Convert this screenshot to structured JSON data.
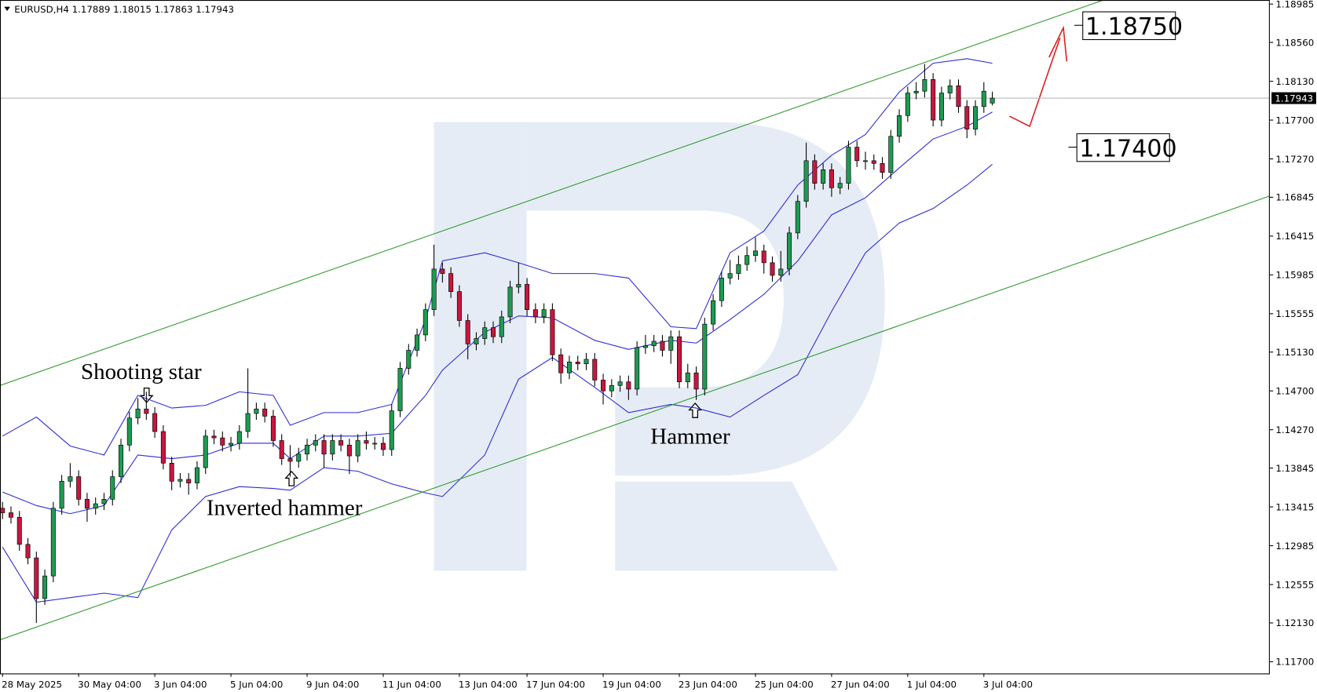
{
  "header": "EURUSD,H4 1.17889 1.18015 1.17863 1.17943",
  "chart_data": {
    "type": "candlestick",
    "categories": [
      "28 May 2025",
      null,
      null,
      null,
      null,
      null,
      null,
      null,
      null,
      "30 May 04:00",
      null,
      null,
      null,
      null,
      null,
      null,
      null,
      null,
      "3 Jun 04:00",
      null,
      null,
      null,
      null,
      null,
      null,
      null,
      null,
      "5 Jun 04:00",
      null,
      null,
      null,
      null,
      null,
      null,
      null,
      null,
      "9 Jun 04:00",
      null,
      null,
      null,
      null,
      null,
      null,
      null,
      null,
      "11 Jun 04:00",
      null,
      null,
      null,
      null,
      null,
      null,
      null,
      null,
      "13 Jun 04:00",
      null,
      null,
      null,
      null,
      null,
      null,
      null,
      "17 Jun 04:00",
      null,
      null,
      null,
      null,
      null,
      null,
      null,
      null,
      "19 Jun 04:00",
      null,
      null,
      null,
      null,
      null,
      null,
      null,
      null,
      "23 Jun 04:00",
      null,
      null,
      null,
      null,
      null,
      null,
      null,
      null,
      "25 Jun 04:00",
      null,
      null,
      null,
      null,
      null,
      null,
      null,
      null,
      "27 Jun 04:00",
      null,
      null,
      null,
      null,
      null,
      null,
      null,
      null,
      "1 Jul 04:00",
      null,
      null,
      null,
      null,
      null,
      null,
      null,
      null,
      "3 Jul 04:00",
      null
    ],
    "open": [
      1.134,
      1.1335,
      1.133,
      1.13,
      1.1285,
      1.124,
      1.1265,
      1.134,
      1.137,
      1.1375,
      1.135,
      1.134,
      1.1345,
      1.135,
      1.1375,
      1.141,
      1.144,
      1.145,
      1.1445,
      1.1425,
      1.139,
      1.137,
      1.1372,
      1.1368,
      1.1385,
      1.142,
      1.1418,
      1.141,
      1.1412,
      1.1425,
      1.1445,
      1.145,
      1.1442,
      1.1415,
      1.1395,
      1.1392,
      1.14,
      1.141,
      1.1415,
      1.14,
      1.1415,
      1.141,
      1.1398,
      1.1415,
      1.1412,
      1.1412,
      1.1405,
      1.1448,
      1.1495,
      1.1515,
      1.1532,
      1.156,
      1.1605,
      1.16,
      1.158,
      1.1548,
      1.1522,
      1.1528,
      1.154,
      1.153,
      1.1552,
      1.1585,
      1.1588,
      1.156,
      1.1552,
      1.156,
      1.151,
      1.149,
      1.1502,
      1.15,
      1.1505,
      1.1482,
      1.147,
      1.1476,
      1.148,
      1.1472,
      1.1518,
      1.152,
      1.1525,
      1.1515,
      1.153,
      1.148,
      1.149,
      1.1472,
      1.1544,
      1.157,
      1.1595,
      1.16,
      1.161,
      1.162,
      1.1625,
      1.1612,
      1.1598,
      1.1605,
      1.1645,
      1.168,
      1.1725,
      1.17,
      1.1715,
      1.1695,
      1.17,
      1.174,
      1.1725,
      1.1725,
      1.1722,
      1.1712,
      1.1752,
      1.1775,
      1.18,
      1.1802,
      1.1815,
      1.177,
      1.18,
      1.1808,
      1.1785,
      1.176,
      1.1785,
      1.17889
    ],
    "high": [
      1.1347,
      1.1342,
      1.1337,
      1.1307,
      1.1292,
      1.1272,
      1.1347,
      1.1377,
      1.139,
      1.1382,
      1.1357,
      1.1352,
      1.1357,
      1.1382,
      1.1417,
      1.1447,
      1.1462,
      1.1469,
      1.1452,
      1.1432,
      1.1397,
      1.1379,
      1.1379,
      1.1392,
      1.1427,
      1.1427,
      1.1425,
      1.1419,
      1.1432,
      1.1495,
      1.1457,
      1.1457,
      1.1449,
      1.1422,
      1.141,
      1.1407,
      1.1417,
      1.1422,
      1.1422,
      1.1422,
      1.1422,
      1.1417,
      1.1422,
      1.1425,
      1.1419,
      1.1419,
      1.1455,
      1.1502,
      1.1522,
      1.1539,
      1.1567,
      1.1632,
      1.1612,
      1.1607,
      1.1587,
      1.1555,
      1.1535,
      1.1547,
      1.1547,
      1.1559,
      1.1592,
      1.1612,
      1.1595,
      1.1567,
      1.1567,
      1.1567,
      1.1517,
      1.1509,
      1.1509,
      1.1512,
      1.1512,
      1.1489,
      1.1483,
      1.1487,
      1.1487,
      1.1525,
      1.1532,
      1.1532,
      1.1532,
      1.1537,
      1.1537,
      1.15,
      1.1497,
      1.1551,
      1.1577,
      1.1602,
      1.1615,
      1.162,
      1.163,
      1.164,
      1.1632,
      1.1619,
      1.1625,
      1.1652,
      1.1687,
      1.1745,
      1.1732,
      1.1722,
      1.1722,
      1.1707,
      1.1747,
      1.1747,
      1.1735,
      1.1732,
      1.1729,
      1.1759,
      1.1782,
      1.1807,
      1.1812,
      1.1832,
      1.1822,
      1.1807,
      1.1815,
      1.1815,
      1.1792,
      1.1792,
      1.1812,
      1.18015
    ],
    "low": [
      1.1328,
      1.1323,
      1.1293,
      1.1278,
      1.1213,
      1.1233,
      1.1258,
      1.1333,
      1.1363,
      1.1343,
      1.1325,
      1.1333,
      1.1338,
      1.1343,
      1.1368,
      1.1403,
      1.1433,
      1.1438,
      1.1418,
      1.1383,
      1.136,
      1.1363,
      1.1355,
      1.1361,
      1.1378,
      1.1411,
      1.1403,
      1.1403,
      1.1405,
      1.1418,
      1.1438,
      1.1435,
      1.1408,
      1.1388,
      1.1375,
      1.1385,
      1.1393,
      1.1403,
      1.1385,
      1.1393,
      1.1403,
      1.1378,
      1.1391,
      1.1405,
      1.1405,
      1.1398,
      1.1398,
      1.1441,
      1.1488,
      1.1508,
      1.1525,
      1.1553,
      1.159,
      1.1573,
      1.1541,
      1.1505,
      1.1515,
      1.1521,
      1.1523,
      1.1523,
      1.1545,
      1.1578,
      1.1553,
      1.1545,
      1.1545,
      1.1503,
      1.1478,
      1.1483,
      1.1493,
      1.1493,
      1.1475,
      1.1455,
      1.1463,
      1.1469,
      1.146,
      1.1465,
      1.1511,
      1.1513,
      1.1508,
      1.15,
      1.1473,
      1.1473,
      1.146,
      1.1465,
      1.1537,
      1.1563,
      1.1588,
      1.1593,
      1.1603,
      1.1613,
      1.16,
      1.1591,
      1.1591,
      1.1598,
      1.1638,
      1.1673,
      1.1693,
      1.1693,
      1.1685,
      1.1688,
      1.1693,
      1.1718,
      1.1715,
      1.1715,
      1.1705,
      1.1705,
      1.1745,
      1.1768,
      1.1793,
      1.1795,
      1.1763,
      1.1763,
      1.1793,
      1.1778,
      1.175,
      1.1753,
      1.1778,
      1.17863
    ],
    "close": [
      1.1335,
      1.133,
      1.13,
      1.1285,
      1.124,
      1.1265,
      1.134,
      1.137,
      1.1375,
      1.135,
      1.134,
      1.1345,
      1.135,
      1.1375,
      1.141,
      1.144,
      1.145,
      1.1445,
      1.1425,
      1.139,
      1.137,
      1.1372,
      1.1368,
      1.1385,
      1.142,
      1.1418,
      1.141,
      1.1412,
      1.1425,
      1.1445,
      1.145,
      1.1442,
      1.1415,
      1.1395,
      1.1392,
      1.14,
      1.141,
      1.1415,
      1.14,
      1.1415,
      1.141,
      1.1398,
      1.1415,
      1.1412,
      1.1412,
      1.1405,
      1.1448,
      1.1495,
      1.1515,
      1.1532,
      1.156,
      1.1605,
      1.16,
      1.158,
      1.1548,
      1.1522,
      1.1528,
      1.154,
      1.153,
      1.1552,
      1.1585,
      1.1588,
      1.156,
      1.1552,
      1.156,
      1.151,
      1.149,
      1.1502,
      1.15,
      1.1505,
      1.1482,
      1.147,
      1.1476,
      1.148,
      1.1472,
      1.1518,
      1.152,
      1.1525,
      1.1515,
      1.153,
      1.148,
      1.149,
      1.1472,
      1.1544,
      1.157,
      1.1595,
      1.16,
      1.161,
      1.162,
      1.1625,
      1.1612,
      1.1598,
      1.1605,
      1.1645,
      1.168,
      1.1725,
      1.17,
      1.1715,
      1.1695,
      1.17,
      1.174,
      1.1725,
      1.1725,
      1.1722,
      1.1712,
      1.1752,
      1.1775,
      1.18,
      1.1802,
      1.1815,
      1.177,
      1.18,
      1.1808,
      1.1785,
      1.176,
      1.1785,
      1.1802,
      1.17943
    ],
    "up_color": "#1f9a52",
    "down_color": "#c8163f",
    "ylim": [
      1.1157,
      1.1903
    ],
    "yticks": [
      1.18985,
      {
        "value": 1.1856,
        "label": "1.18560"
      },
      {
        "value": 1.1813,
        "label": "1.18130"
      },
      {
        "value": 1.177,
        "label": "1.17700"
      },
      {
        "value": 1.1727,
        "label": "1.17270"
      },
      1.16845,
      1.16415,
      1.15985,
      1.15555,
      {
        "value": 1.1513,
        "label": "1.15130"
      },
      {
        "value": 1.147,
        "label": "1.14700"
      },
      {
        "value": 1.1427,
        "label": "1.14270"
      },
      1.13845,
      1.13415,
      1.12985,
      1.12555,
      {
        "value": 1.1213,
        "label": "1.12130"
      },
      {
        "value": 1.117,
        "label": "1.11700"
      }
    ],
    "overlays": [
      {
        "color": "#2b2bd6",
        "x": [
          0,
          4,
          8,
          12,
          16,
          20,
          24,
          28,
          32,
          34,
          38,
          42,
          46,
          50,
          52,
          57,
          61,
          65,
          70,
          74,
          79,
          82,
          86,
          90,
          94,
          98,
          102,
          106,
          110,
          114,
          117
        ],
        "values": [
          1.142,
          1.1441,
          1.1409,
          1.1399,
          1.1465,
          1.1451,
          1.1454,
          1.1469,
          1.1465,
          1.1432,
          1.1446,
          1.1446,
          1.1455,
          1.1549,
          1.1614,
          1.1623,
          1.1612,
          1.16,
          1.16,
          1.1595,
          1.1541,
          1.1539,
          1.1623,
          1.1647,
          1.1698,
          1.1731,
          1.1754,
          1.1801,
          1.1833,
          1.1838,
          1.1833
        ]
      },
      {
        "color": "#2b2bd6",
        "x": [
          0,
          4,
          8,
          12,
          16,
          20,
          24,
          28,
          32,
          34,
          38,
          42,
          46,
          50,
          52,
          57,
          61,
          65,
          70,
          74,
          79,
          82,
          86,
          90,
          94,
          98,
          102,
          106,
          110,
          114,
          117
        ],
        "values": [
          1.1358,
          1.1343,
          1.1334,
          1.1343,
          1.1399,
          1.1395,
          1.1399,
          1.1412,
          1.1412,
          1.1395,
          1.142,
          1.142,
          1.1423,
          1.1465,
          1.1493,
          1.1535,
          1.1553,
          1.1551,
          1.1526,
          1.1516,
          1.1526,
          1.1523,
          1.1549,
          1.1577,
          1.1614,
          1.1665,
          1.1684,
          1.1717,
          1.1749,
          1.1763,
          1.1779
        ]
      },
      {
        "color": "#2b2bd6",
        "x": [
          0,
          4,
          8,
          12,
          16,
          20,
          24,
          28,
          32,
          34,
          38,
          42,
          46,
          50,
          52,
          57,
          61,
          65,
          70,
          74,
          79,
          82,
          86,
          90,
          94,
          98,
          102,
          106,
          110,
          114,
          117
        ],
        "values": [
          1.1297,
          1.1236,
          1.1241,
          1.1246,
          1.1241,
          1.1316,
          1.1353,
          1.1364,
          1.1362,
          1.136,
          1.1385,
          1.1381,
          1.1367,
          1.1357,
          1.1353,
          1.1399,
          1.1483,
          1.1507,
          1.1474,
          1.1446,
          1.1455,
          1.1451,
          1.1441,
          1.1465,
          1.1488,
          1.1558,
          1.1623,
          1.1656,
          1.1672,
          1.1698,
          1.1721
        ]
      },
      {
        "color": "#2e9a2e",
        "x": [
          -0.3,
          130.2
        ],
        "values": [
          1.1476,
          1.19032
        ]
      },
      {
        "color": "#2e9a2e",
        "x": [
          -0.3,
          149.8
        ],
        "values": [
          1.11943,
          1.16859
        ]
      }
    ],
    "current_price": 1.17943,
    "levels": [
      {
        "value": 1.1875,
        "label": "1.18750"
      },
      {
        "value": 1.174,
        "label": "1.17400"
      }
    ],
    "annotations": [
      "Shooting star",
      "Inverted hammer",
      "Hammer"
    ]
  }
}
